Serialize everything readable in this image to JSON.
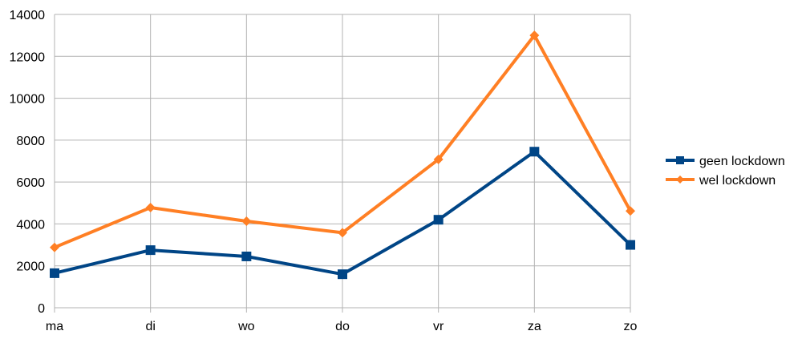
{
  "chart_data": {
    "type": "line",
    "title": "",
    "xlabel": "",
    "ylabel": "",
    "categories": [
      "ma",
      "di",
      "wo",
      "do",
      "vr",
      "za",
      "zo"
    ],
    "ylim": [
      0,
      14000
    ],
    "yticks": [
      0,
      2000,
      4000,
      6000,
      8000,
      10000,
      12000,
      14000
    ],
    "grid": true,
    "legend_position": "right",
    "series": [
      {
        "name": "geen lockdown",
        "color": "#004586",
        "marker": "square",
        "values": [
          1650,
          2750,
          2450,
          1600,
          4200,
          7450,
          3000
        ]
      },
      {
        "name": "wel lockdown",
        "color": "#ff7f24",
        "marker": "diamond",
        "values": [
          2880,
          4780,
          4130,
          3580,
          7080,
          13000,
          4620
        ]
      }
    ]
  }
}
